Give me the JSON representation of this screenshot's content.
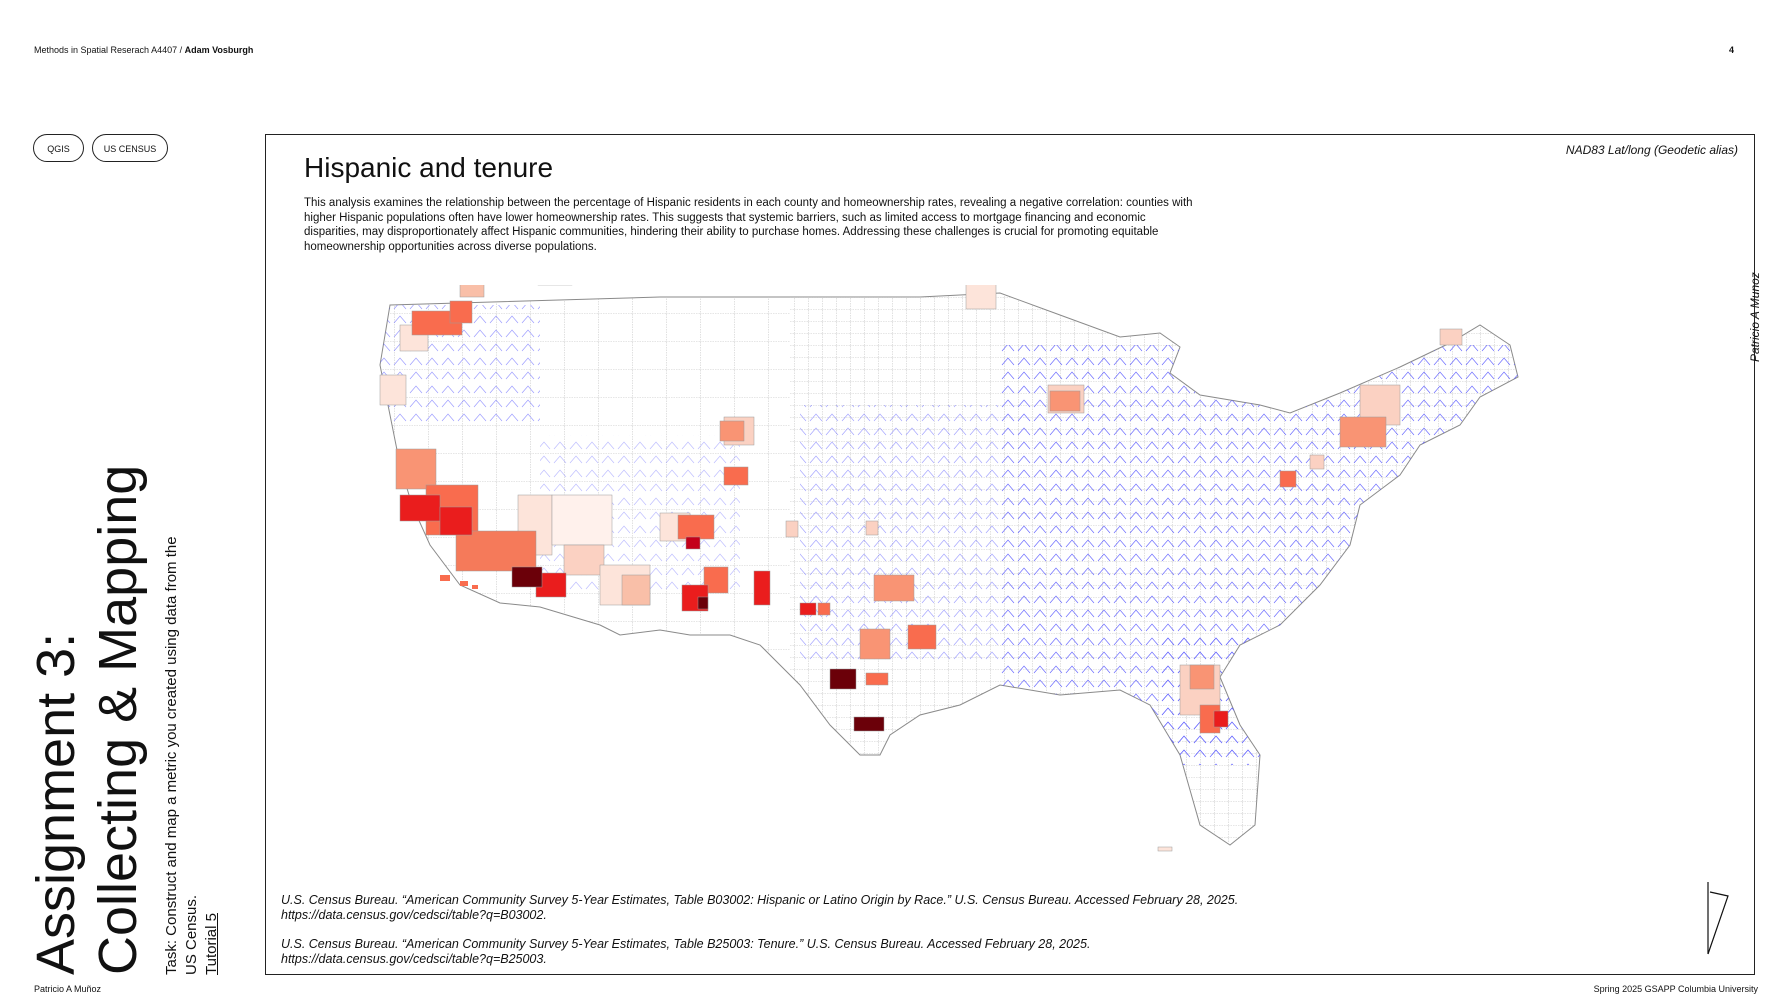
{
  "header": {
    "course": "Methods in Spatial Reserach A4407 / ",
    "instructor": "Adam Vosburgh",
    "page_number": "4"
  },
  "tags": [
    "QGIS",
    "US CENSUS"
  ],
  "assignment": {
    "line1": "Assignment 3:",
    "line2": "Collecting & Mapping",
    "task_line1": "Task: Construct and map a metric you created using data from the",
    "task_line2": "US Census.",
    "task_line3": "Tutorial 5"
  },
  "map": {
    "title": "Hispanic and tenure",
    "description": "This analysis examines the relationship between the percentage of Hispanic residents in each county and homeownership rates, revealing a negative correlation: counties with higher Hispanic populations often have lower homeownership rates. This suggests that systemic barriers, such as limited access to mortgage financing and economic disparities, may disproportionately affect Hispanic communities, hindering their ability to purchase homes. Addressing these challenges is crucial for promoting equitable homeownership opportunities across diverse populations.",
    "crs": "NAD83 Lat/long (Geodetic alias)",
    "author": "Patricio A Munoz",
    "colors": {
      "low": "#fde4da",
      "mid": "#f99474",
      "high": "#ea1d1d",
      "max": "#6b0009",
      "hatch": "#5b5bff",
      "border": "#9a9a9a"
    },
    "citations": [
      {
        "text": "U.S. Census Bureau. “American Community Survey 5-Year Estimates, Table B03002: Hispanic or Latino Origin by Race.” U.S. Census Bureau. Accessed February 28, 2025.",
        "url": "https://data.census.gov/cedsci/table?q=B03002."
      },
      {
        "text": "U.S. Census Bureau. “American Community Survey 5-Year Estimates, Table B25003: Tenure.” U.S. Census Bureau. Accessed February 28, 2025.",
        "url": "https://data.census.gov/cedsci/table?q=B25003."
      }
    ]
  },
  "footer": {
    "student": "Patricio A Muñoz",
    "term": "Spring 2025 GSAPP Columbia University"
  }
}
